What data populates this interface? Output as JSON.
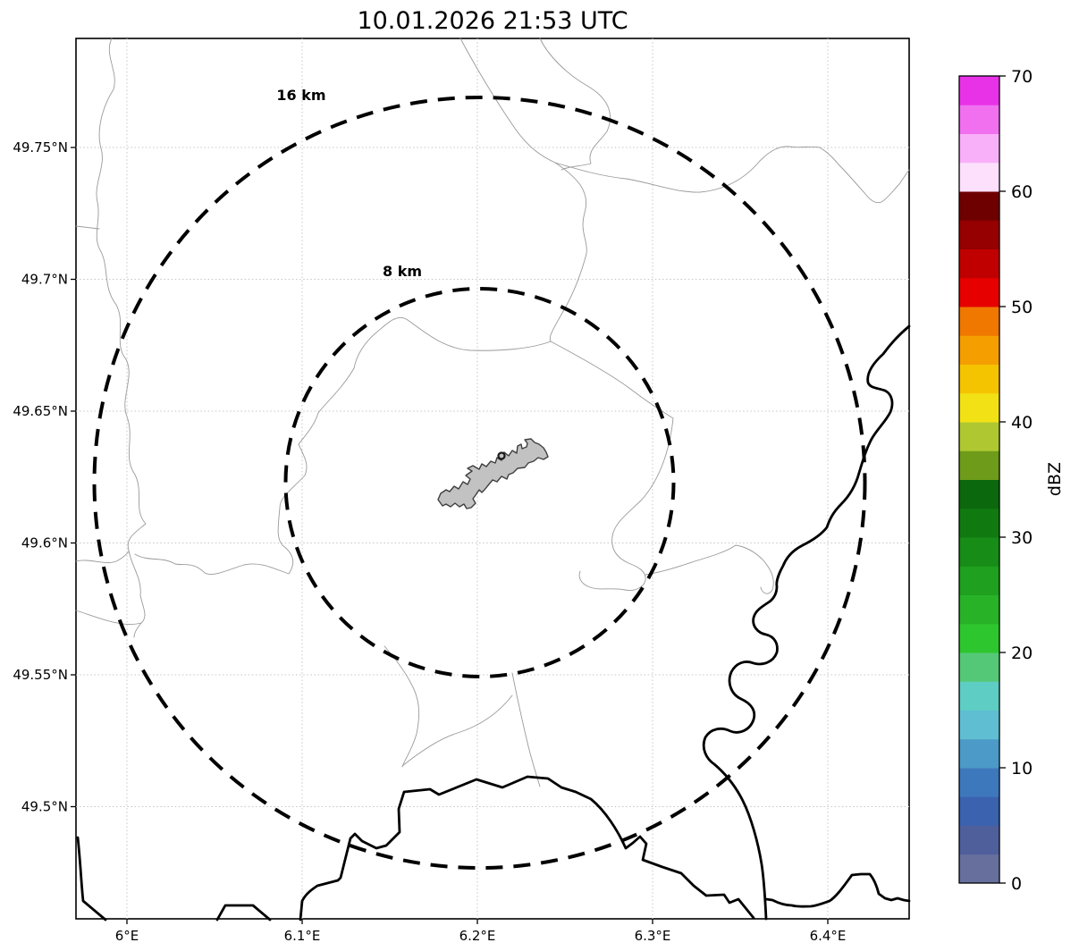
{
  "title": "10.01.2026 21:53 UTC",
  "map": {
    "rings": [
      {
        "label": "16 km",
        "radius_km": 16
      },
      {
        "label": "8 km",
        "radius_km": 8
      }
    ],
    "features": {
      "city_polygon": "gray filled commune boundary at map center",
      "radar_marker": "small dark circle at radar site",
      "thin_gray_lines": "administrative boundaries",
      "thick_black_lines": "country borders / river"
    }
  },
  "axes": {
    "x_ticks": [
      "6°E",
      "6.1°E",
      "6.2°E",
      "6.3°E",
      "6.4°E"
    ],
    "y_ticks": [
      "49.75°N",
      "49.7°N",
      "49.65°N",
      "49.6°N",
      "49.55°N",
      "49.5°N"
    ]
  },
  "colorbar": {
    "label": "dBZ",
    "min": 0,
    "max": 70,
    "tick_labels": [
      "0",
      "10",
      "20",
      "30",
      "40",
      "50",
      "60",
      "70"
    ],
    "segments": [
      "#67709D",
      "#4F5F9C",
      "#3A62AE",
      "#3E78BC",
      "#4C9AC8",
      "#5FBED2",
      "#5ECDC3",
      "#55C877",
      "#2EC62E",
      "#28B228",
      "#1FA01F",
      "#178C17",
      "#107A10",
      "#0C680C",
      "#6E9C1A",
      "#AFC832",
      "#F2E215",
      "#F5C400",
      "#F59E00",
      "#F07800",
      "#E60000",
      "#C00000",
      "#960000",
      "#6E0000",
      "#FCE0FC",
      "#F8B0F8",
      "#F070F0",
      "#E832E8"
    ]
  },
  "chart_data": {
    "type": "heatmap",
    "title": "10.01.2026 21:53 UTC",
    "description": "Weather radar reflectivity (dBZ) map panel centered on radar site near 6.20°E, 49.62°N with 8 km and 16 km range rings; no reflectivity echoes are present in this frame",
    "x": {
      "label_ticks": [
        "6°E",
        "6.1°E",
        "6.2°E",
        "6.3°E",
        "6.4°E"
      ],
      "lim": [
        5.971,
        6.447
      ]
    },
    "y": {
      "label_ticks": [
        "49.75°N",
        "49.7°N",
        "49.65°N",
        "49.6°N",
        "49.55°N",
        "49.5°N"
      ],
      "lim": [
        49.457,
        49.791
      ]
    },
    "grid": true,
    "range_rings_km": [
      8,
      16
    ],
    "radar_site_lonlat": [
      6.2,
      49.62
    ],
    "colorbar": {
      "label": "dBZ",
      "min": 0,
      "max": 70,
      "ticks": [
        0,
        10,
        20,
        30,
        40,
        50,
        60,
        70
      ],
      "segment_step_dbz": 2.5
    },
    "values": []
  }
}
